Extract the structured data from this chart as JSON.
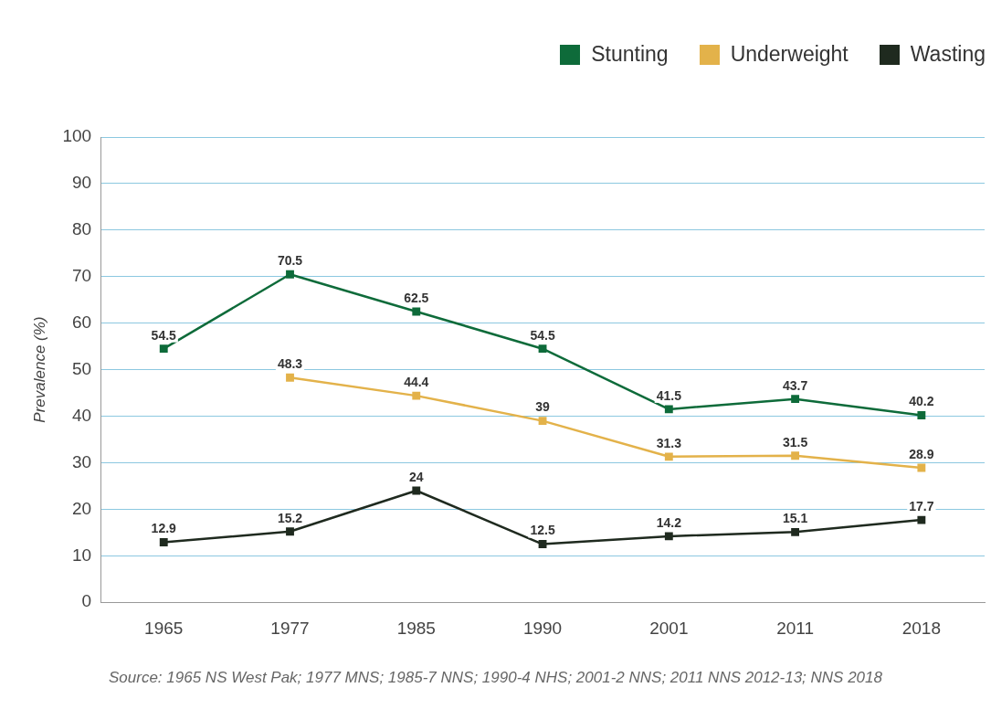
{
  "chart_data": {
    "type": "line",
    "categories": [
      "1965",
      "1977",
      "1985",
      "1990",
      "2001",
      "2011",
      "2018"
    ],
    "series": [
      {
        "name": "Stunting",
        "color": "#0e6b3a",
        "values": [
          54.5,
          70.5,
          62.5,
          54.5,
          41.5,
          43.7,
          40.2
        ]
      },
      {
        "name": "Underweight",
        "color": "#e3b24a",
        "values": [
          null,
          48.3,
          44.4,
          39,
          31.3,
          31.5,
          28.9
        ]
      },
      {
        "name": "Wasting",
        "color": "#1f2a1f",
        "values": [
          12.9,
          15.2,
          24,
          12.5,
          14.2,
          15.1,
          17.7
        ]
      }
    ],
    "ylabel": "Prevalence (%)",
    "ylim": [
      0,
      100
    ],
    "yticks": [
      0,
      10,
      20,
      30,
      40,
      50,
      60,
      70,
      80,
      90,
      100
    ],
    "grid": "y",
    "legend": "top right",
    "marker": "square",
    "line_style": "solid",
    "data_labels": true,
    "annotations": [
      "Source: 1965 NS West Pak; 1977 MNS; 1985-7 NNS; 1990-4 NHS; 2001-2 NNS; 2011 NNS 2012-13; NNS 2018"
    ]
  }
}
